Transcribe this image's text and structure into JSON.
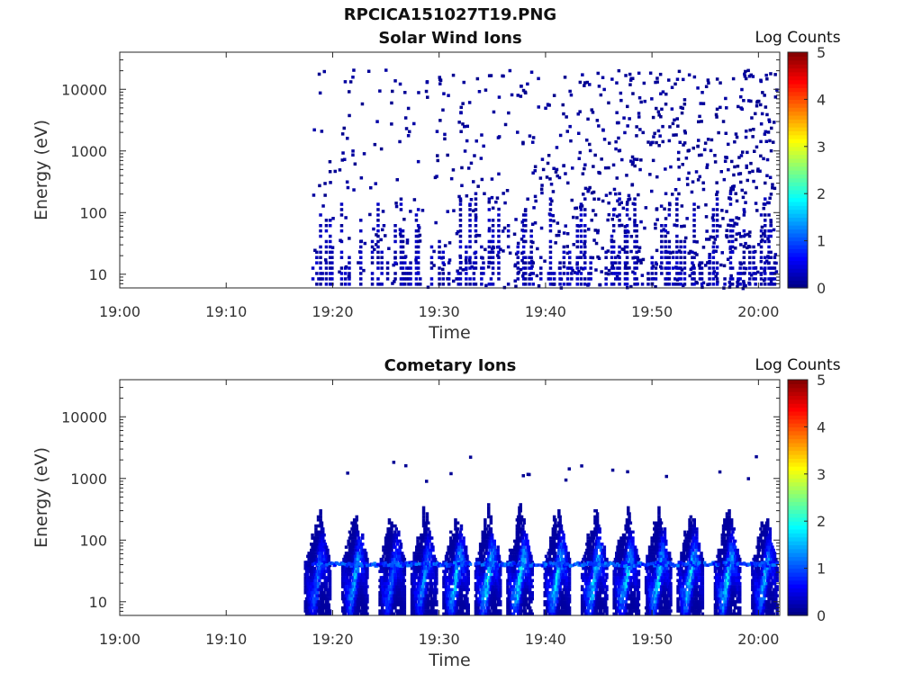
{
  "figure": {
    "title": "RPCICA151027T19.PNG"
  },
  "chart_data": [
    {
      "type": "heatmap",
      "title": "Solar Wind Ions",
      "xlabel": "Time",
      "ylabel": "Energy (eV)",
      "x_ticks": [
        "19:00",
        "19:10",
        "19:20",
        "19:30",
        "19:40",
        "19:50",
        "20:00"
      ],
      "y_ticks": [
        "10",
        "100",
        "1000",
        "10000"
      ],
      "y_scale": "log",
      "ylim": [
        6,
        40000
      ],
      "xlim": [
        "19:00",
        "20:02"
      ],
      "colorbar": {
        "label": "Log Counts",
        "ticks": [
          "0",
          "1",
          "2",
          "3",
          "4",
          "5"
        ],
        "range": [
          0,
          5
        ],
        "colormap": "jet"
      },
      "data_start": "19:18",
      "description_of_values": "sparse counts mostly between log 0 and 0.3, scattered from 10 to 20000 eV after 19:30"
    },
    {
      "type": "heatmap",
      "title": "Cometary Ions",
      "xlabel": "Time",
      "ylabel": "Energy (eV)",
      "x_ticks": [
        "19:00",
        "19:10",
        "19:20",
        "19:30",
        "19:40",
        "19:50",
        "20:00"
      ],
      "y_ticks": [
        "10",
        "100",
        "1000",
        "10000"
      ],
      "y_scale": "log",
      "ylim": [
        6,
        40000
      ],
      "xlim": [
        "19:00",
        "20:02"
      ],
      "colorbar": {
        "label": "Log Counts",
        "ticks": [
          "0",
          "1",
          "2",
          "3",
          "4",
          "5"
        ],
        "range": [
          0,
          5
        ],
        "colormap": "jet"
      },
      "bursts": [
        {
          "t": "19:18.5",
          "peak": 1.2
        },
        {
          "t": "19:22.0",
          "peak": 1.6
        },
        {
          "t": "19:25.5",
          "peak": 1.3
        },
        {
          "t": "19:28.5",
          "peak": 1.4
        },
        {
          "t": "19:31.5",
          "peak": 1.8
        },
        {
          "t": "19:34.5",
          "peak": 2.0
        },
        {
          "t": "19:37.5",
          "peak": 2.0
        },
        {
          "t": "19:41.0",
          "peak": 1.9
        },
        {
          "t": "19:44.5",
          "peak": 1.9
        },
        {
          "t": "19:47.5",
          "peak": 1.8
        },
        {
          "t": "19:50.5",
          "peak": 1.8
        },
        {
          "t": "19:53.5",
          "peak": 1.9
        },
        {
          "t": "19:57.0",
          "peak": 2.0
        },
        {
          "t": "20:00.5",
          "peak": 1.6
        }
      ],
      "emission_energy_range_eV": [
        6,
        250
      ]
    }
  ]
}
